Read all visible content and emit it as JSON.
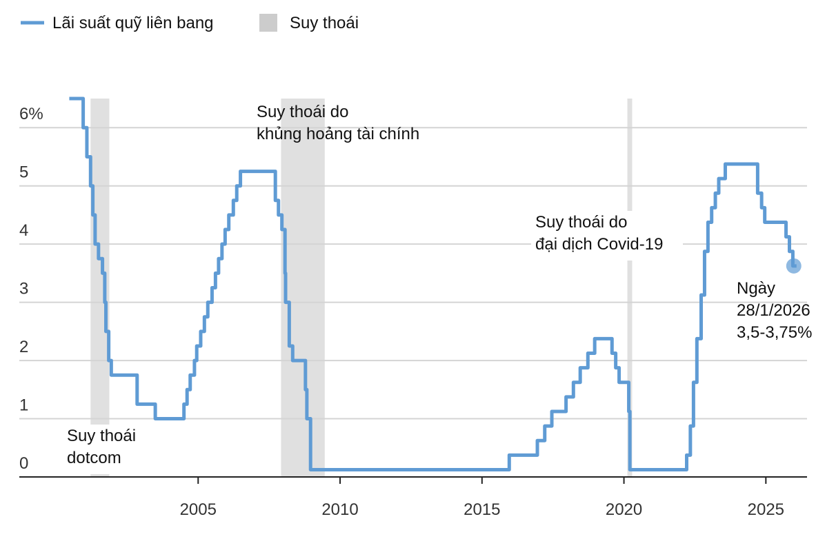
{
  "chart_data": {
    "type": "line",
    "legend": {
      "position": "top-left"
    },
    "recession_label": "Suy thoái",
    "recession_color": "#e0e0e0",
    "recessions": [
      [
        2001.21,
        2001.87
      ],
      [
        2007.92,
        2009.46
      ],
      [
        2020.12,
        2020.29
      ]
    ],
    "series": [
      {
        "name": "Lãi suất quỹ liên bang",
        "color": "#5f9bd4",
        "x": [
          2000.46,
          2000.95,
          2001.08,
          2001.21,
          2001.29,
          2001.37,
          2001.49,
          2001.63,
          2001.71,
          2001.75,
          2001.85,
          2001.94,
          2002.85,
          2003.49,
          2004.5,
          2004.61,
          2004.72,
          2004.87,
          2004.95,
          2005.09,
          2005.22,
          2005.34,
          2005.49,
          2005.61,
          2005.72,
          2005.84,
          2005.95,
          2006.08,
          2006.24,
          2006.36,
          2006.49,
          2007.72,
          2007.83,
          2007.95,
          2008.06,
          2008.08,
          2008.21,
          2008.33,
          2008.78,
          2008.83,
          2008.96,
          2015.96,
          2016.95,
          2017.21,
          2017.46,
          2017.96,
          2018.22,
          2018.46,
          2018.73,
          2018.97,
          2019.58,
          2019.71,
          2019.83,
          2020.17,
          2020.21,
          2022.21,
          2022.34,
          2022.45,
          2022.57,
          2022.72,
          2022.84,
          2022.96,
          2023.09,
          2023.22,
          2023.34,
          2023.57,
          2024.71,
          2024.85,
          2024.96,
          2025.71,
          2025.83,
          2025.95,
          2026.08
        ],
        "values": [
          6.5,
          6.0,
          5.5,
          5.0,
          4.5,
          4.0,
          3.75,
          3.5,
          3.0,
          2.5,
          2.0,
          1.75,
          1.25,
          1.0,
          1.25,
          1.5,
          1.75,
          2.0,
          2.25,
          2.5,
          2.75,
          3.0,
          3.25,
          3.5,
          3.75,
          4.0,
          4.25,
          4.5,
          4.75,
          5.0,
          5.25,
          4.75,
          4.5,
          4.25,
          3.5,
          3.0,
          2.25,
          2.0,
          1.5,
          1.0,
          0.125,
          0.375,
          0.625,
          0.875,
          1.125,
          1.375,
          1.625,
          1.875,
          2.125,
          2.375,
          2.125,
          1.875,
          1.625,
          1.125,
          0.125,
          0.375,
          0.875,
          1.625,
          2.375,
          3.125,
          3.875,
          4.375,
          4.625,
          4.875,
          5.125,
          5.375,
          4.875,
          4.625,
          4.375,
          4.125,
          3.875,
          3.625,
          3.625
        ]
      }
    ],
    "annotations": [
      {
        "lines": [
          "Suy thoái",
          "dotcom"
        ]
      },
      {
        "lines": [
          "Suy thoái do",
          "khủng hoảng tài chính"
        ]
      },
      {
        "lines": [
          "Suy thoái do",
          "đại dịch Covid-19"
        ]
      },
      {
        "lines": [
          "Ngày",
          "28/1/2026",
          "3,5-3,75%"
        ]
      }
    ],
    "xlim": [
      1998.7,
      2026.45
    ],
    "xticks": [
      2005,
      2010,
      2015,
      2020,
      2025
    ],
    "ylim": [
      0,
      6.5
    ],
    "yticks": [
      0,
      1,
      2,
      3,
      4,
      5,
      {
        "value": 6,
        "label": "6%"
      }
    ],
    "grid": true
  }
}
